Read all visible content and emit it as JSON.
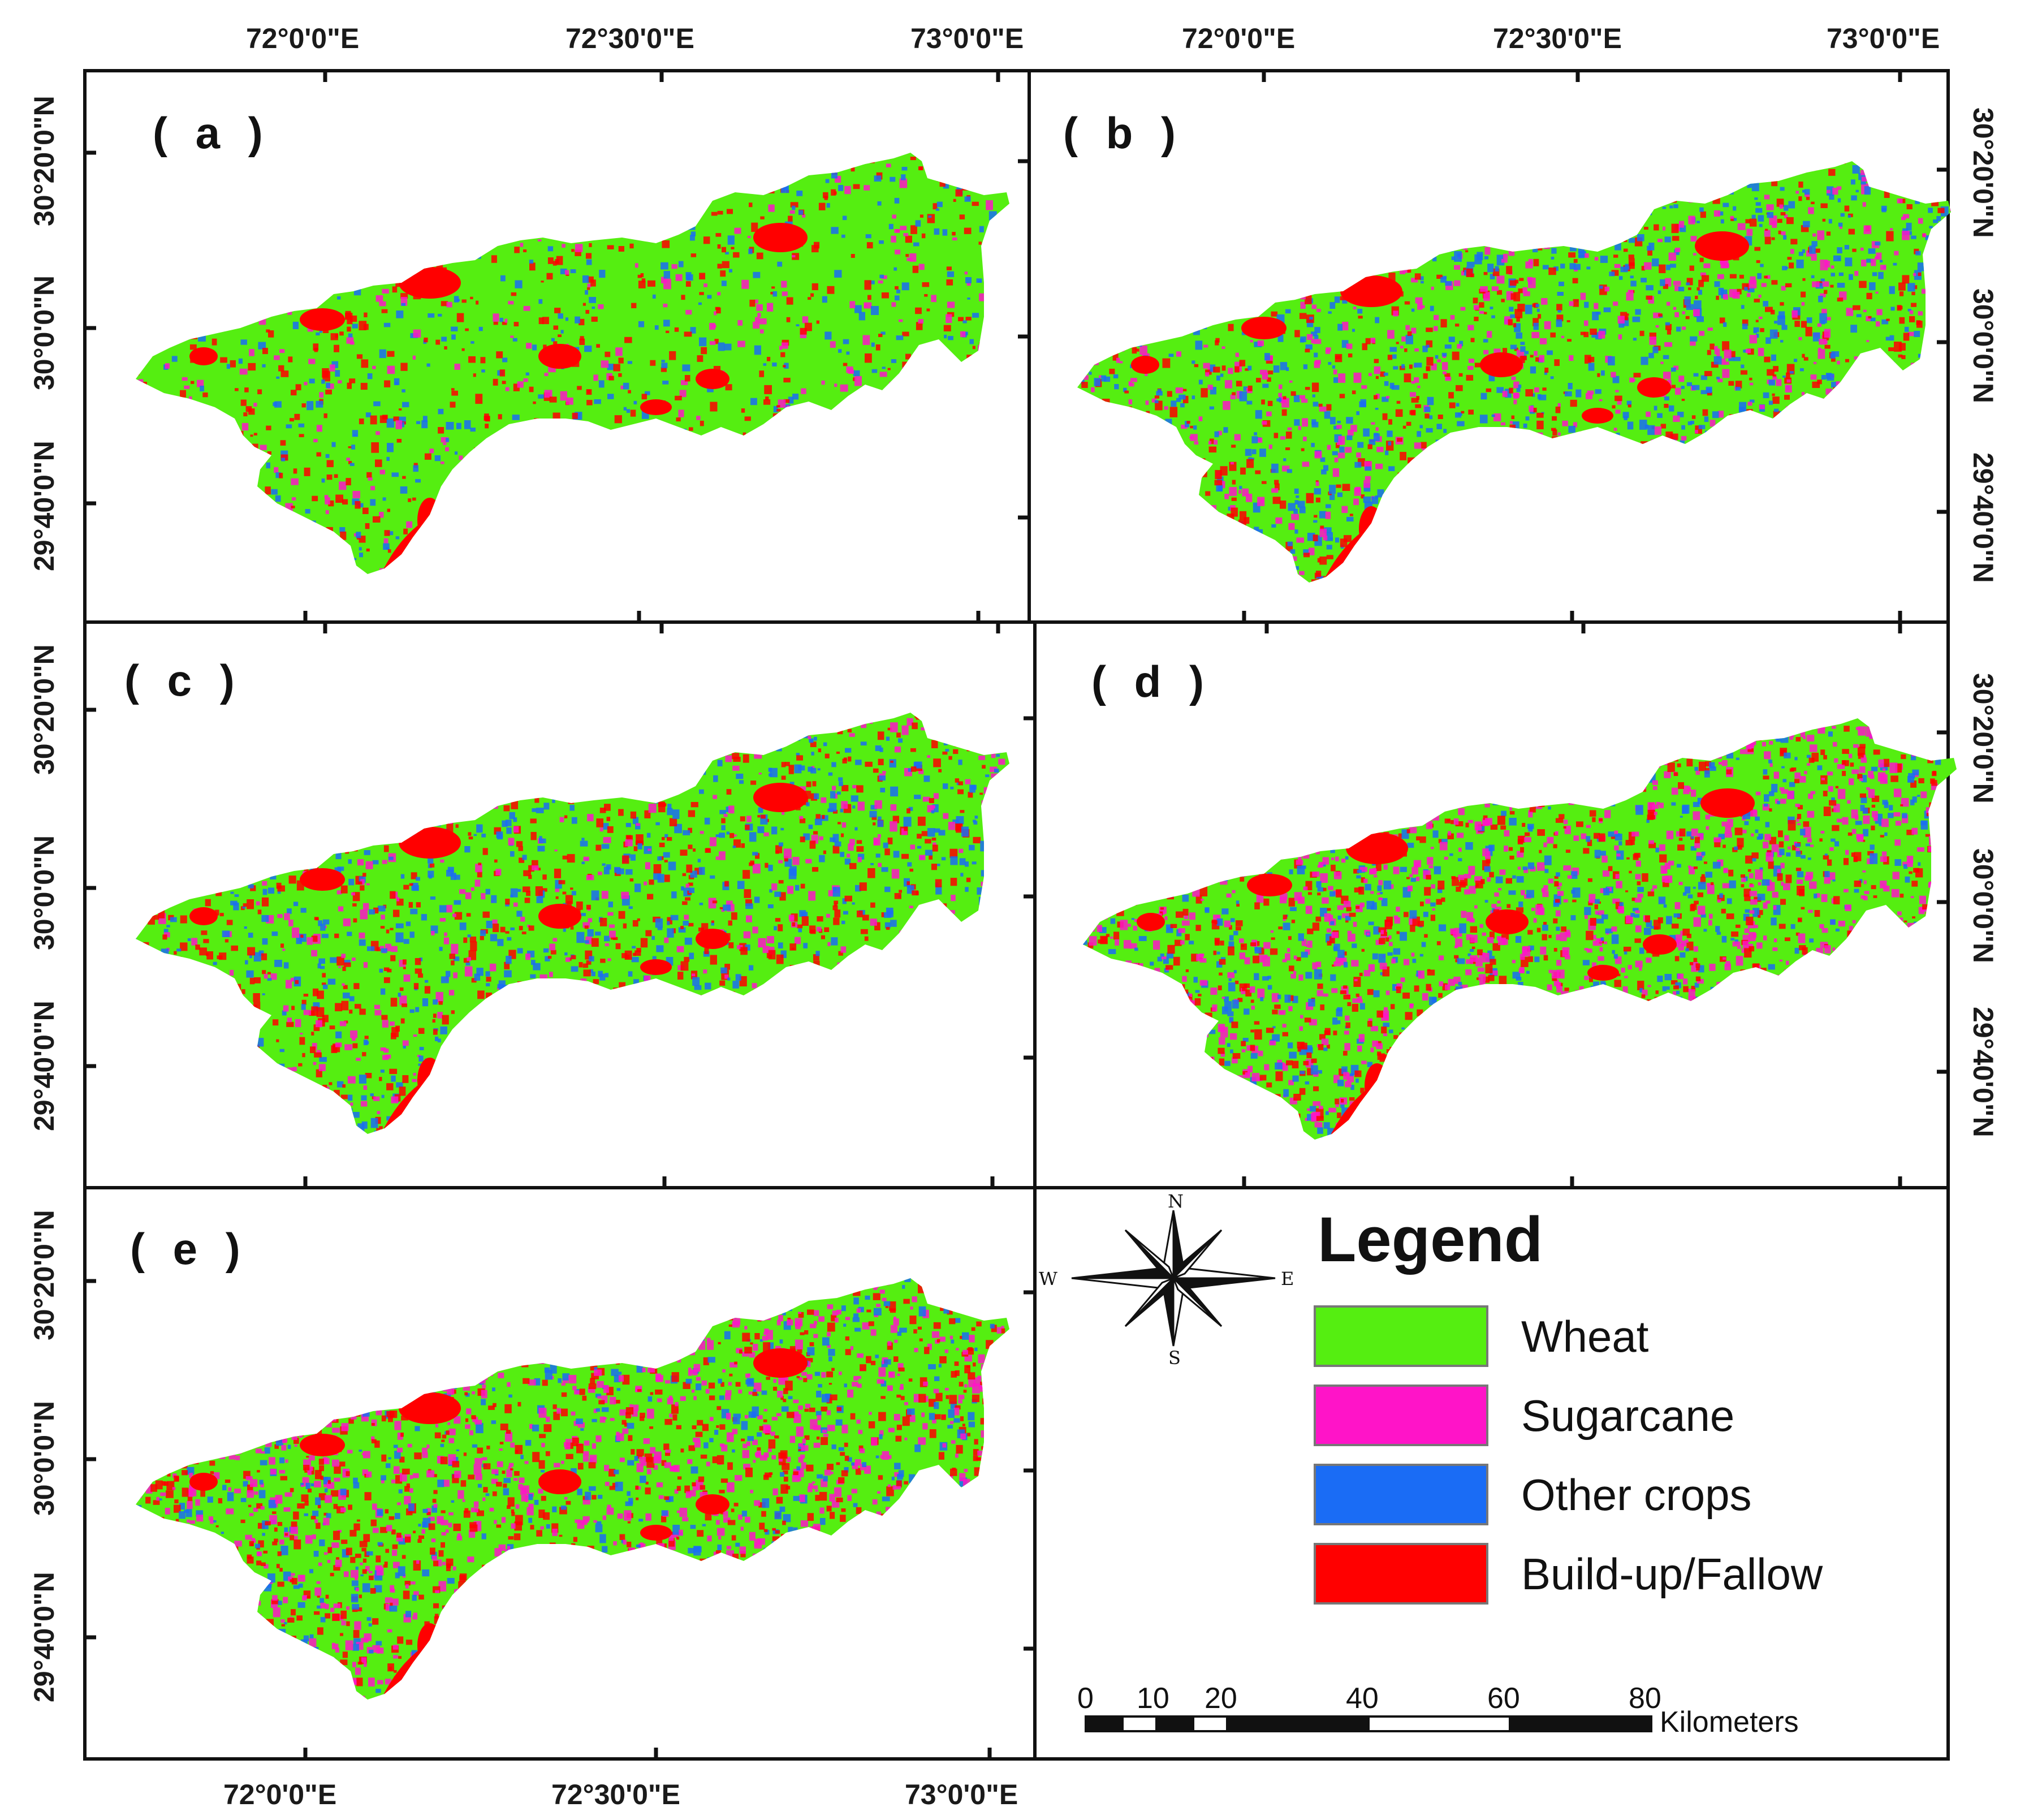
{
  "map": {
    "panels": [
      {
        "id": "a",
        "label": "( a )"
      },
      {
        "id": "b",
        "label": "( b )"
      },
      {
        "id": "c",
        "label": "( c )"
      },
      {
        "id": "d",
        "label": "( d )"
      },
      {
        "id": "e",
        "label": "( e )"
      }
    ],
    "longitude_labels": [
      "72°0'0\"E",
      "72°30'0\"E",
      "73°0'0\"E"
    ],
    "latitude_labels": [
      "30°20'0\"N",
      "30°0'0\"N",
      "29°40'0\"N"
    ],
    "legend": {
      "title": "Legend",
      "items": [
        {
          "label": "Wheat",
          "color": "#55ee11"
        },
        {
          "label": "Sugarcane",
          "color": "#ff14c8"
        },
        {
          "label": "Other crops",
          "color": "#1a6cf5"
        },
        {
          "label": "Build-up/Fallow",
          "color": "#ff0000"
        }
      ]
    },
    "compass": {
      "n": "N",
      "s": "S",
      "e": "E",
      "w": "W"
    },
    "scale_bar": {
      "ticks": [
        "0",
        "10",
        "20",
        "40",
        "60",
        "80"
      ],
      "unit": "Kilometers"
    },
    "class_mix": {
      "a": {
        "wheat": 0.72,
        "sugarcane": 0.06,
        "other": 0.09,
        "buildup": 0.13
      },
      "b": {
        "wheat": 0.5,
        "sugarcane": 0.16,
        "other": 0.18,
        "buildup": 0.16
      },
      "c": {
        "wheat": 0.55,
        "sugarcane": 0.1,
        "other": 0.17,
        "buildup": 0.18
      },
      "d": {
        "wheat": 0.4,
        "sugarcane": 0.25,
        "other": 0.17,
        "buildup": 0.18
      },
      "e": {
        "wheat": 0.42,
        "sugarcane": 0.25,
        "other": 0.13,
        "buildup": 0.2
      }
    }
  }
}
